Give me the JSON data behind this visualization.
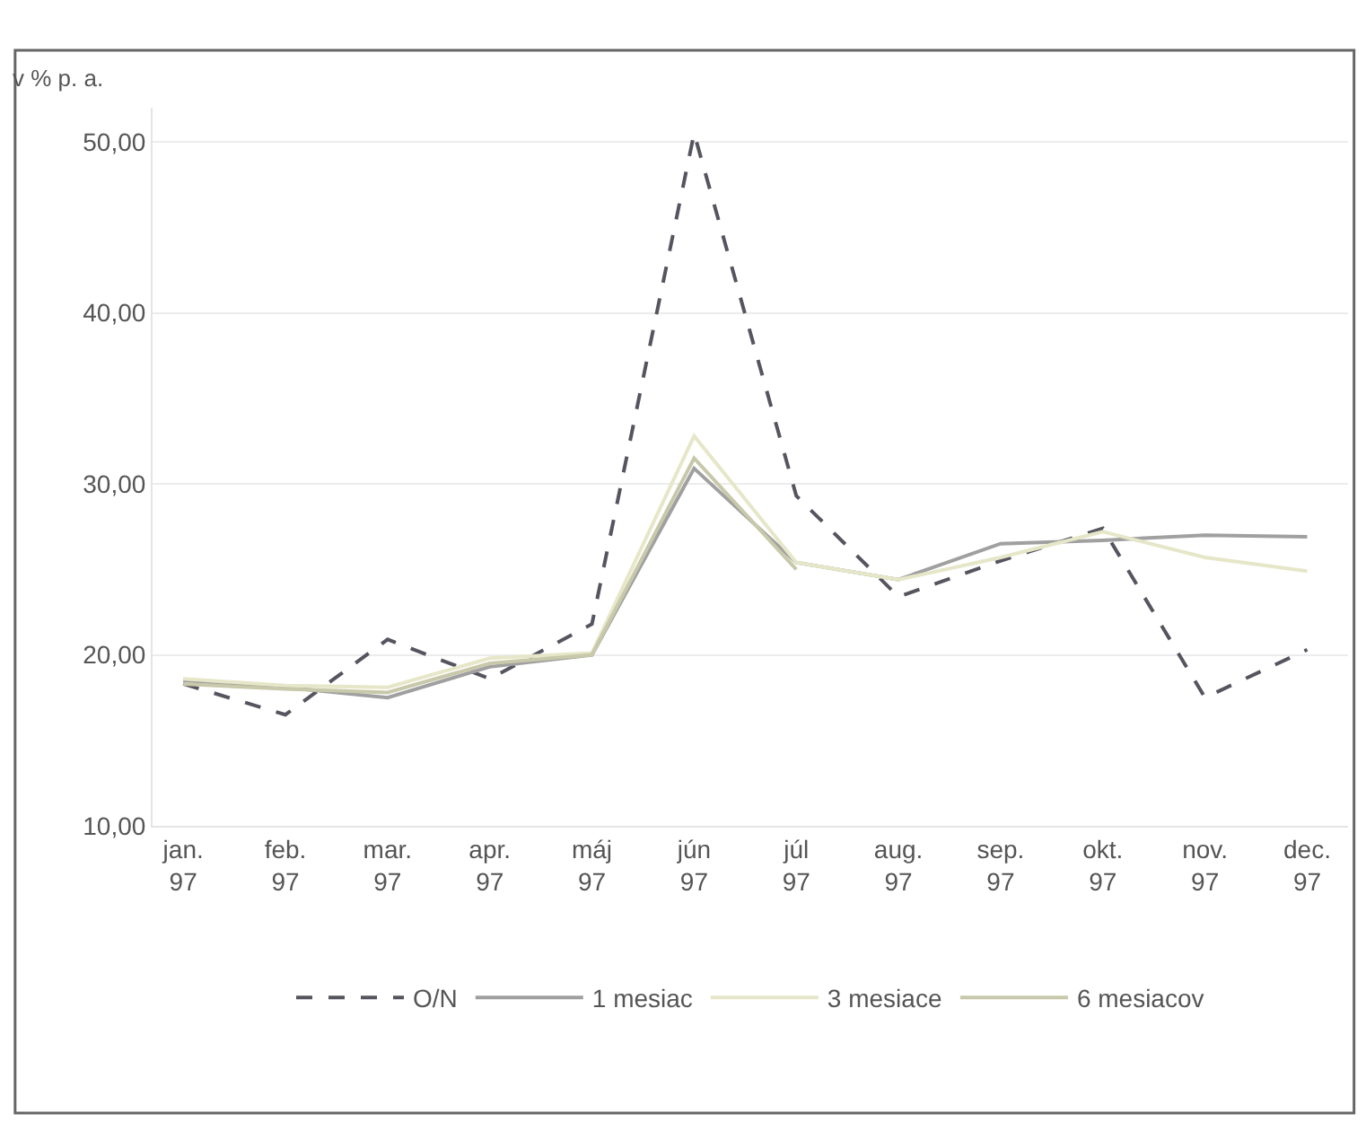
{
  "chart_data": {
    "type": "line",
    "ylabel": "v % p. a.",
    "categories": [
      "jan.\n97",
      "feb.\n97",
      "mar.\n97",
      "apr.\n97",
      "máj\n97",
      "jún\n97",
      "júl\n97",
      "aug.\n97",
      "sep.\n97",
      "okt.\n97",
      "nov.\n97",
      "dec.\n97"
    ],
    "series": [
      {
        "name": "O/N",
        "color": "#555560",
        "line_style": "dashed",
        "values": [
          18.3,
          16.5,
          20.9,
          18.6,
          21.8,
          50.5,
          29.3,
          23.4,
          25.5,
          27.4,
          17.5,
          20.3
        ]
      },
      {
        "name": "1 mesiac",
        "color": "#a0a0a0",
        "line_style": "solid",
        "values": [
          18.5,
          18.1,
          17.5,
          19.3,
          20.0,
          30.9,
          25.4,
          24.4,
          26.5,
          26.7,
          27.0,
          26.9
        ]
      },
      {
        "name": "3 mesiace",
        "color": "#e6e6c8",
        "line_style": "solid",
        "values": [
          18.6,
          18.2,
          18.1,
          19.8,
          20.1,
          32.8,
          25.4,
          24.4,
          25.7,
          27.2,
          25.7,
          24.9
        ]
      },
      {
        "name": "6 mesiacov",
        "color": "#c8c8aa",
        "line_style": "solid",
        "values": [
          18.3,
          18.0,
          17.8,
          19.5,
          20.0,
          31.5,
          25.0,
          null,
          null,
          null,
          null,
          null
        ]
      }
    ],
    "ylim": [
      10,
      52
    ],
    "yticks": [
      {
        "value": 10,
        "label": "10,00"
      },
      {
        "value": 20,
        "label": "20,00"
      },
      {
        "value": 30,
        "label": "30,00"
      },
      {
        "value": 40,
        "label": "40,00"
      },
      {
        "value": 50,
        "label": "50,00"
      }
    ],
    "grid": "y",
    "legend": "bottom",
    "marker": "none"
  }
}
